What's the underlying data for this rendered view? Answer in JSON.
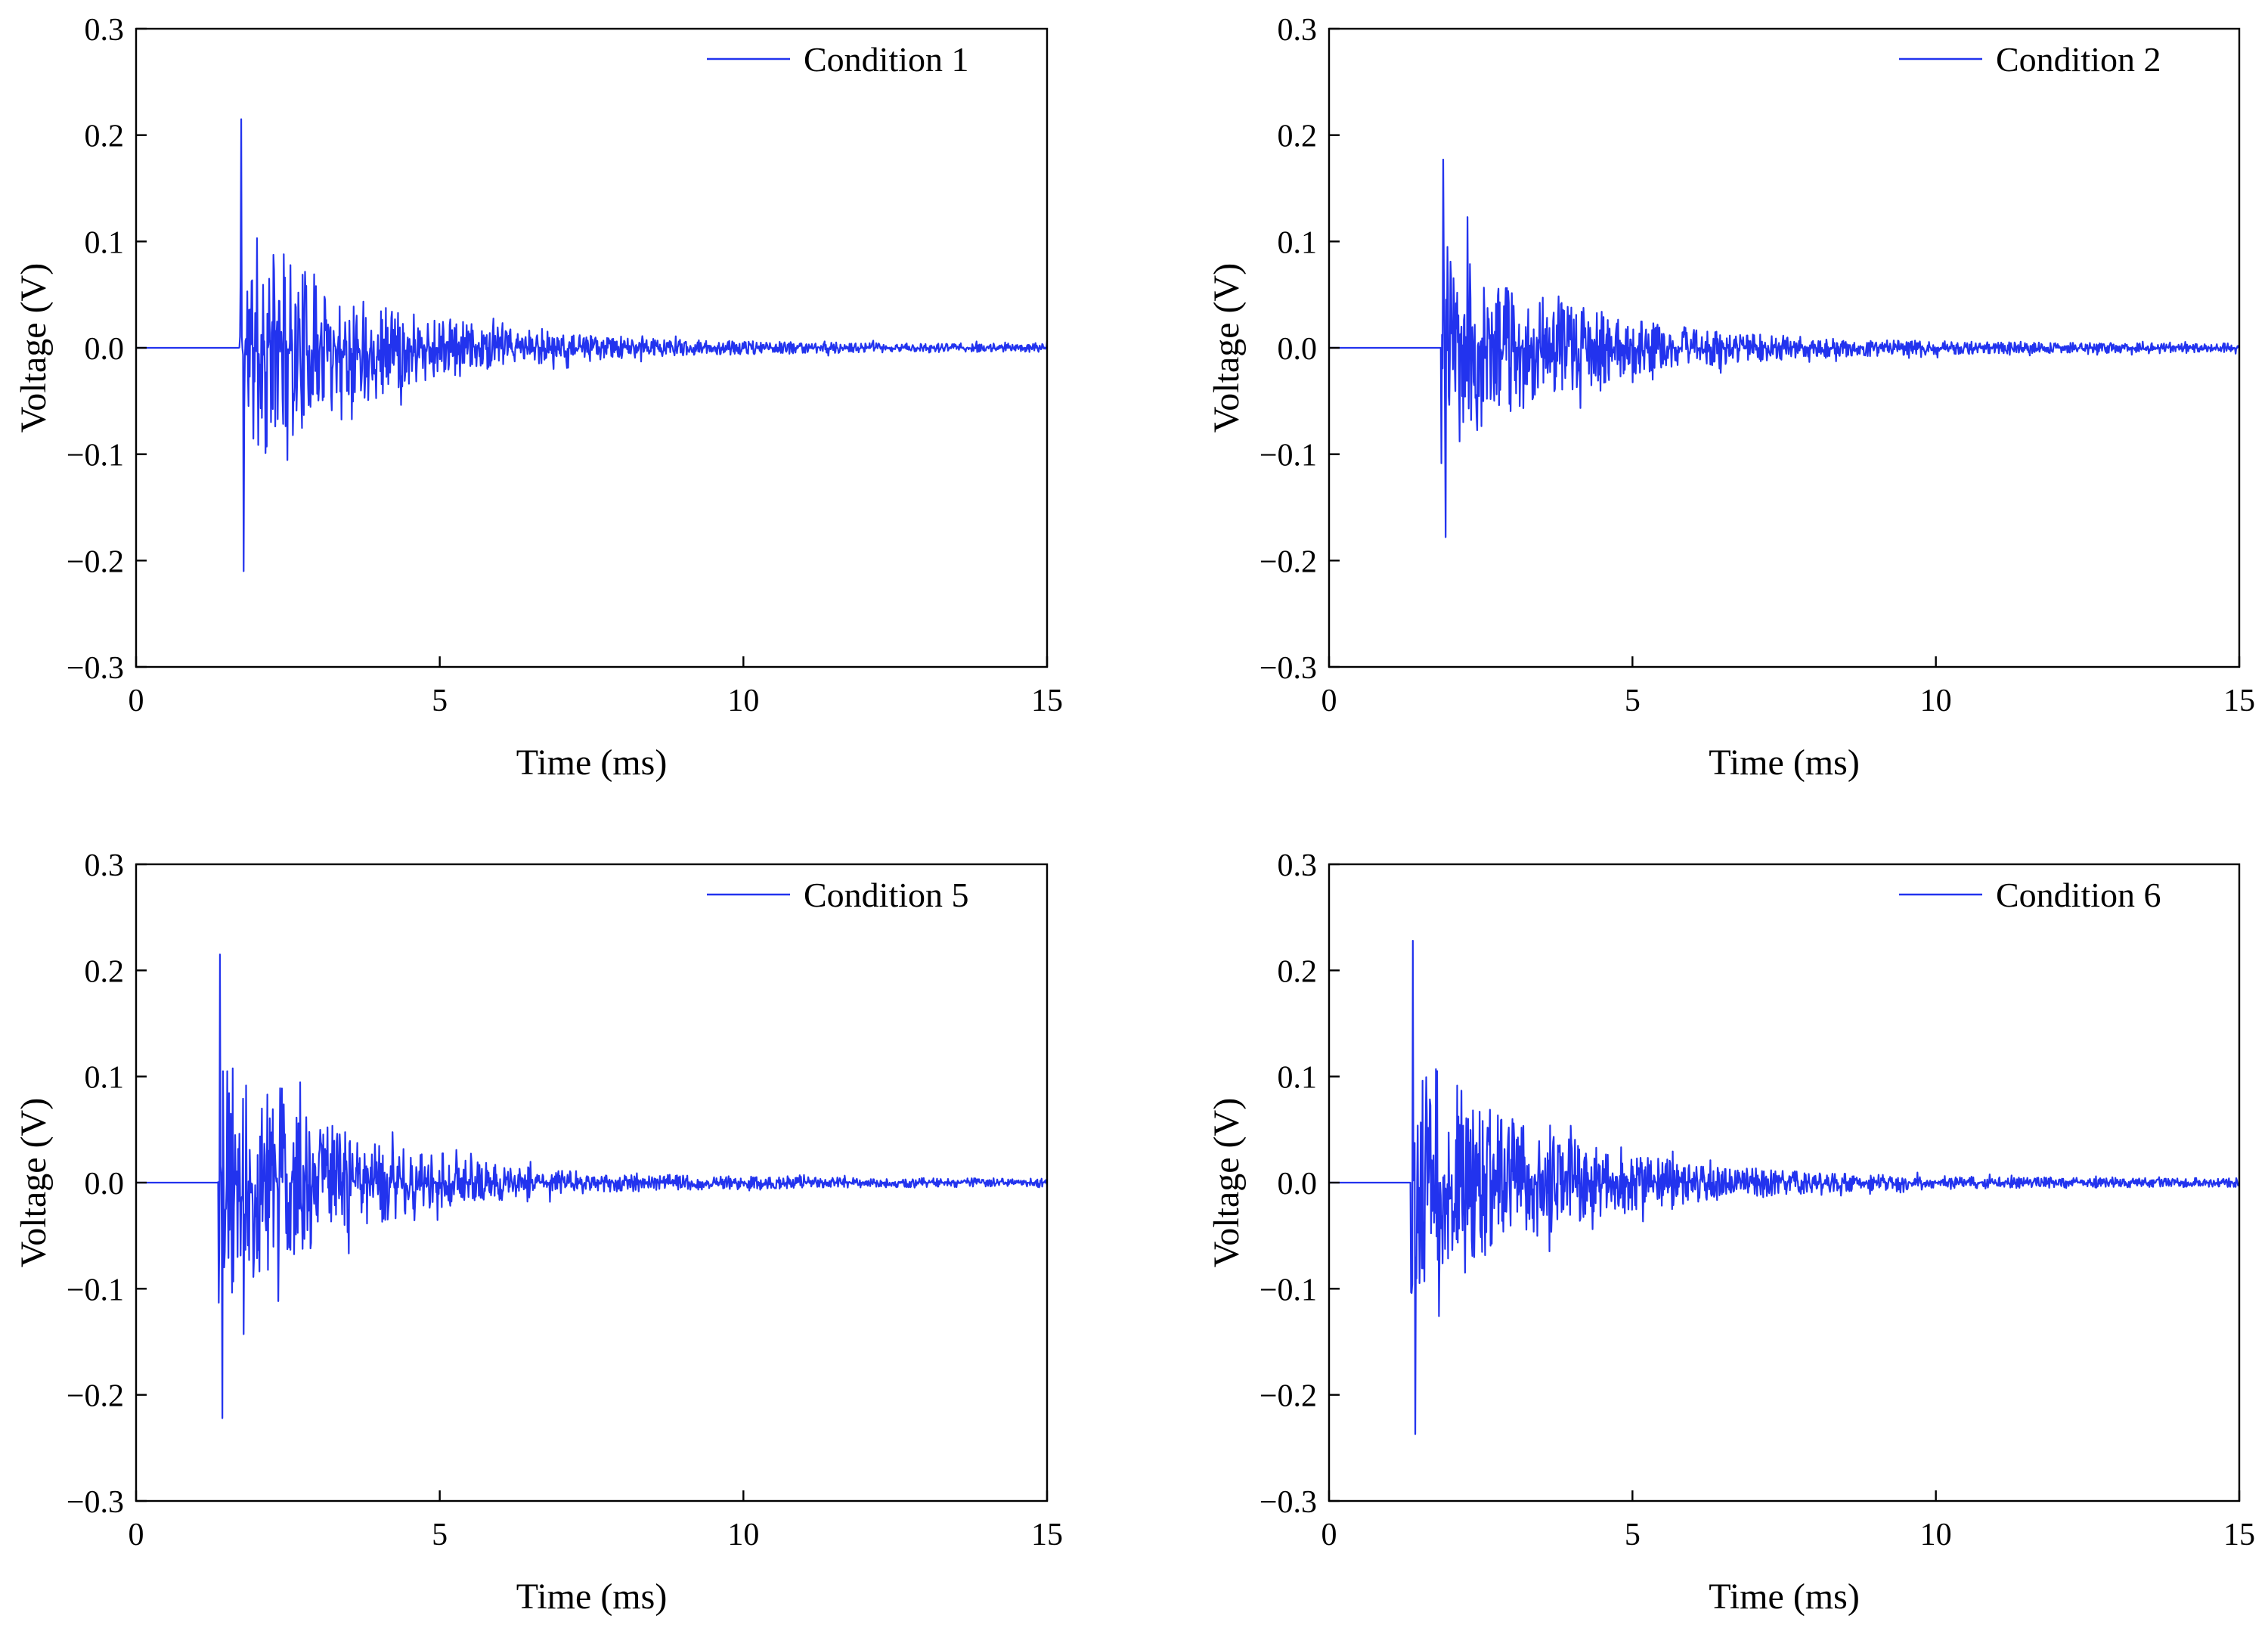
{
  "colors": {
    "signal": "#2233ee",
    "axis": "#000000",
    "background": "#ffffff"
  },
  "chart_data": [
    {
      "type": "line",
      "legend": "Condition 1",
      "xlabel": "Time (ms)",
      "ylabel": "Voltage (V)",
      "xlim": [
        0,
        15
      ],
      "ylim": [
        -0.3,
        0.3
      ],
      "xticks": [
        0,
        5,
        10,
        15
      ],
      "yticks": [
        -0.3,
        -0.2,
        -0.1,
        0.0,
        0.1,
        0.2,
        0.3
      ],
      "xtick_labels": [
        "0",
        "5",
        "10",
        "15"
      ],
      "ytick_labels": [
        "−0.3",
        "−0.2",
        "−0.1",
        "0.0",
        "0.1",
        "0.2",
        "0.3"
      ],
      "legend_position": "top-right",
      "signal": {
        "onset_ms": 1.7,
        "peak_pos": 0.215,
        "peak_neg": -0.21,
        "decay_ms": 2.1,
        "base_amp": 0.12,
        "floor_amp": 0.004,
        "samples": 1500,
        "seed": 11
      }
    },
    {
      "type": "line",
      "legend": "Condition 2",
      "xlabel": "Time (ms)",
      "ylabel": "Voltage (V)",
      "xlim": [
        0,
        15
      ],
      "ylim": [
        -0.3,
        0.3
      ],
      "xticks": [
        0,
        5,
        10,
        15
      ],
      "yticks": [
        -0.3,
        -0.2,
        -0.1,
        0.0,
        0.1,
        0.2,
        0.3
      ],
      "xtick_labels": [
        "0",
        "5",
        "10",
        "15"
      ],
      "ytick_labels": [
        "−0.3",
        "−0.2",
        "−0.1",
        "0.0",
        "0.1",
        "0.2",
        "0.3"
      ],
      "legend_position": "top-right",
      "signal": {
        "onset_ms": 1.85,
        "peak_pos": 0.177,
        "peak_neg": -0.178,
        "decay_ms": 2.2,
        "base_amp": 0.1,
        "floor_amp": 0.004,
        "samples": 1500,
        "seed": 23
      }
    },
    {
      "type": "line",
      "legend": "Condition 5",
      "xlabel": "Time (ms)",
      "ylabel": "Voltage (V)",
      "xlim": [
        0,
        15
      ],
      "ylim": [
        -0.3,
        0.3
      ],
      "xticks": [
        0,
        5,
        10,
        15
      ],
      "yticks": [
        -0.3,
        -0.2,
        -0.1,
        0.0,
        0.1,
        0.2,
        0.3
      ],
      "xtick_labels": [
        "0",
        "5",
        "10",
        "15"
      ],
      "ytick_labels": [
        "−0.3",
        "−0.2",
        "−0.1",
        "0.0",
        "0.1",
        "0.2",
        "0.3"
      ],
      "legend_position": "top-right",
      "signal": {
        "onset_ms": 1.35,
        "peak_pos": 0.215,
        "peak_neg": -0.222,
        "decay_ms": 2.1,
        "base_amp": 0.12,
        "floor_amp": 0.004,
        "samples": 1500,
        "seed": 37
      }
    },
    {
      "type": "line",
      "legend": "Condition 6",
      "xlabel": "Time (ms)",
      "ylabel": "Voltage (V)",
      "xlim": [
        0,
        15
      ],
      "ylim": [
        -0.3,
        0.3
      ],
      "xticks": [
        0,
        5,
        10,
        15
      ],
      "yticks": [
        -0.3,
        -0.2,
        -0.1,
        0.0,
        0.1,
        0.2,
        0.3
      ],
      "xtick_labels": [
        "0",
        "5",
        "10",
        "15"
      ],
      "ytick_labels": [
        "−0.3",
        "−0.2",
        "−0.1",
        "0.0",
        "0.1",
        "0.2",
        "0.3"
      ],
      "legend_position": "top-right",
      "signal": {
        "onset_ms": 1.35,
        "peak_pos": 0.228,
        "peak_neg": -0.237,
        "decay_ms": 2.2,
        "base_amp": 0.125,
        "floor_amp": 0.004,
        "samples": 1500,
        "seed": 53
      }
    }
  ]
}
